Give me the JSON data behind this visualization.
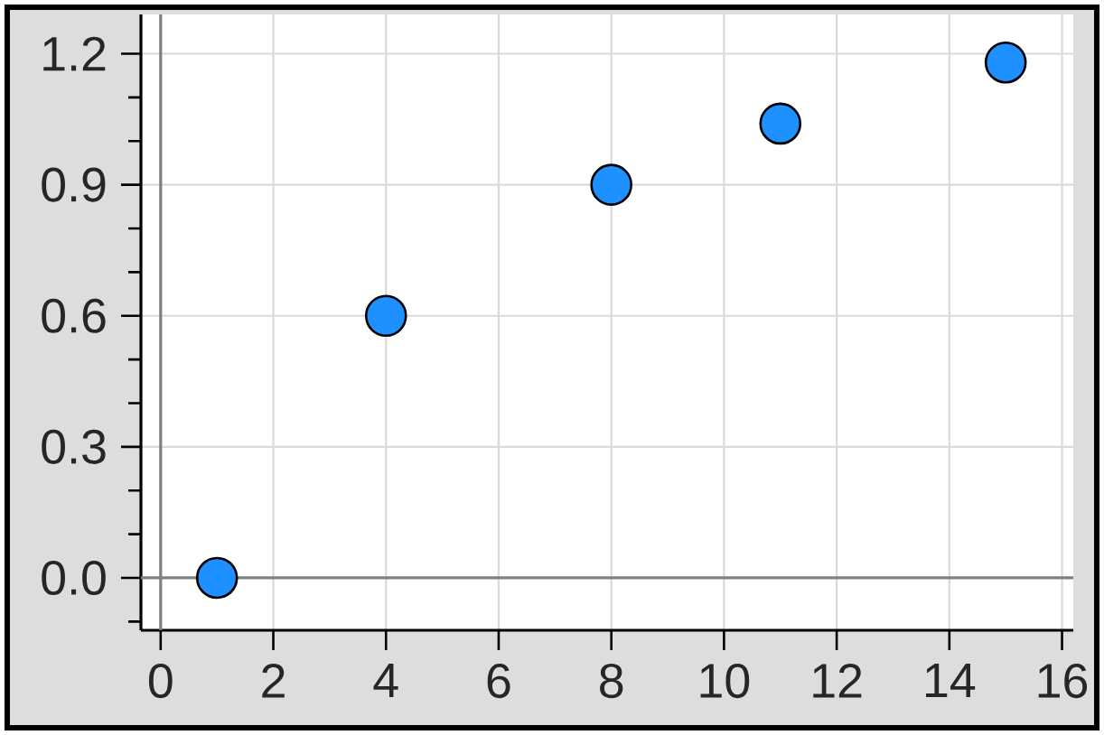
{
  "chart_data": {
    "type": "scatter",
    "x": [
      1,
      4,
      8,
      11,
      15
    ],
    "values": [
      0,
      0.6,
      0.9,
      1.04,
      1.18
    ],
    "color": "#1e90ff",
    "marker": "circle",
    "grid": true,
    "xlim": [
      -0.35,
      16.2
    ],
    "ylim": [
      -0.12,
      1.29
    ],
    "xticks": [
      0,
      2,
      4,
      6,
      8,
      10,
      12,
      14,
      16
    ],
    "yticks": [
      {
        "value": -0.1,
        "label": null
      },
      {
        "value": 0,
        "label": "0.0"
      },
      {
        "value": 0.1,
        "label": null
      },
      {
        "value": 0.2,
        "label": null
      },
      0.3,
      {
        "value": 0.4,
        "label": null
      },
      {
        "value": 0.5,
        "label": null
      },
      0.6,
      {
        "value": 0.7,
        "label": null
      },
      {
        "value": 0.8,
        "label": null
      },
      0.9,
      {
        "value": 1.0,
        "label": null
      },
      {
        "value": 1.1,
        "label": null
      },
      1.2
    ]
  }
}
